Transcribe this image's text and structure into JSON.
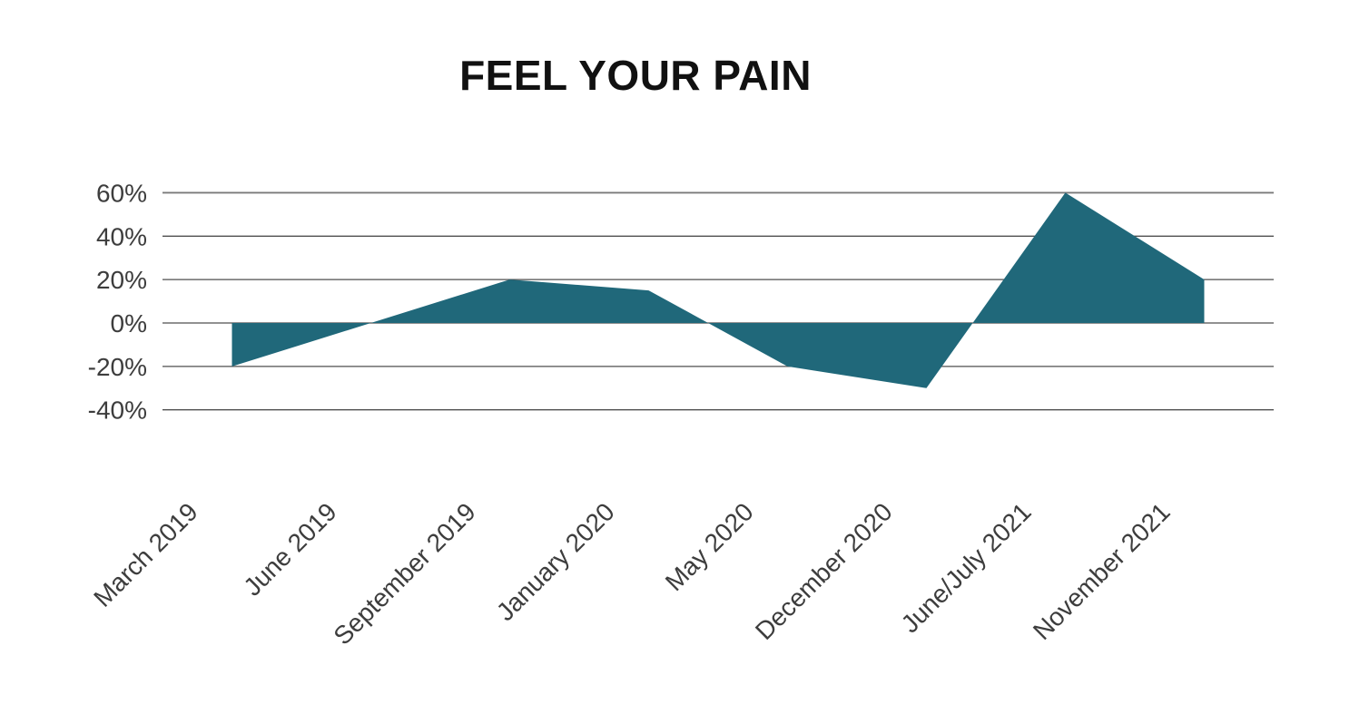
{
  "chart_data": {
    "type": "area",
    "title": "FEEL YOUR PAIN",
    "categories": [
      "March 2019",
      "June 2019",
      "September 2019",
      "January 2020",
      "May 2020",
      "December 2020",
      "June/July 2021",
      "November 2021"
    ],
    "values": [
      -20,
      0,
      20,
      15,
      -20,
      -30,
      60,
      20
    ],
    "unit": "%",
    "y_ticks": [
      {
        "label": "60%",
        "value": 60
      },
      {
        "label": "40%",
        "value": 40
      },
      {
        "label": "20%",
        "value": 20
      },
      {
        "label": "0%",
        "value": 0
      },
      {
        "label": "-20%",
        "value": -20
      },
      {
        "label": "-40%",
        "value": -40
      }
    ],
    "ylim": [
      -40,
      60
    ],
    "xlabel": "",
    "ylabel": "",
    "grid": true,
    "legend": false,
    "baseline_value": 0,
    "colors": {
      "area": "#20687a",
      "gridline": "#4f4f4f",
      "gridline_top": "#7a7a7a",
      "axis_label": "#3d3d3d",
      "title": "#111111",
      "background": "#ffffff"
    }
  }
}
